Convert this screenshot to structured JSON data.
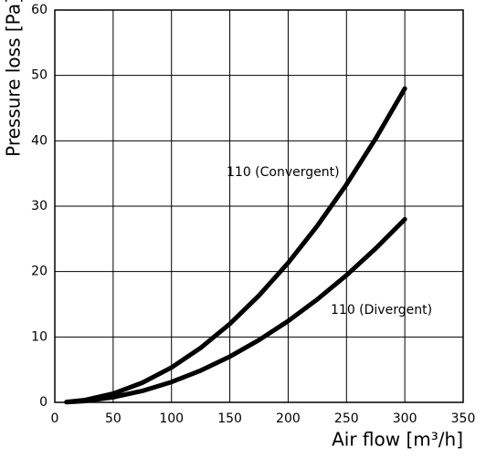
{
  "chart_data": {
    "type": "line",
    "x_label": "Air flow [m³/h]",
    "y_label": "Pressure loss [Pa]",
    "x": [
      10,
      25,
      50,
      75,
      100,
      125,
      150,
      175,
      200,
      225,
      250,
      275,
      300
    ],
    "series": [
      {
        "name": "110 (Convergent)",
        "color": "#000000",
        "values": [
          0.05,
          0.33,
          1.33,
          3,
          5.33,
          8.33,
          12,
          16.33,
          21.33,
          27,
          33.33,
          40.33,
          48
        ]
      },
      {
        "name": "110 (Divergent)",
        "color": "#000000",
        "values": [
          0.03,
          0.19,
          0.78,
          1.75,
          3.11,
          4.86,
          7,
          9.53,
          12.44,
          15.75,
          19.44,
          23.53,
          28
        ]
      }
    ],
    "xlim": [
      0,
      350
    ],
    "xticks": [
      0,
      50,
      100,
      150,
      200,
      250,
      300,
      350
    ],
    "ylim": [
      0,
      60
    ],
    "yticks": [
      0,
      10,
      20,
      30,
      40,
      50,
      60
    ],
    "grid": true
  }
}
